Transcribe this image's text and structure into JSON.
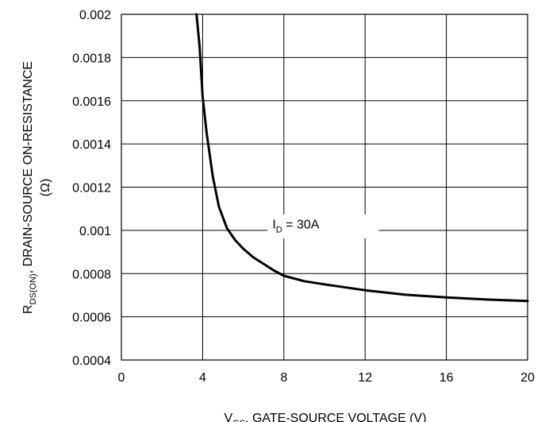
{
  "chart_data": {
    "type": "line",
    "xlabel": {
      "main": "V",
      "sub": "GS",
      "rest": ", GATE-SOURCE VOLTAGE (V)"
    },
    "ylabel": {
      "main": "R",
      "sub": "DS(ON)",
      "rest": ", DRAIN-SOURCE ON-RESISTANCE",
      "unit": "(Ω)"
    },
    "xlim": [
      0,
      20
    ],
    "ylim": [
      0.0004,
      0.002
    ],
    "x_ticks": [
      "0",
      "4",
      "8",
      "12",
      "16",
      "20"
    ],
    "y_ticks": [
      "0.0004",
      "0.0006",
      "0.0008",
      "0.001",
      "0.0012",
      "0.0014",
      "0.0016",
      "0.0018",
      "0.002"
    ],
    "grid": true,
    "annotation": {
      "main": "I",
      "sub": "D",
      "rest": " = 30A",
      "x": 7.2,
      "y": 0.00103
    },
    "series": [
      {
        "values": [
          [
            3.7,
            0.002
          ],
          [
            3.85,
            0.00185
          ],
          [
            4.0,
            0.00162
          ],
          [
            4.2,
            0.00145
          ],
          [
            4.5,
            0.00125
          ],
          [
            4.8,
            0.00111
          ],
          [
            5.2,
            0.00101
          ],
          [
            5.6,
            0.000955
          ],
          [
            6.0,
            0.000915
          ],
          [
            6.5,
            0.000875
          ],
          [
            7.0,
            0.000845
          ],
          [
            7.5,
            0.000815
          ],
          [
            8.0,
            0.00079
          ],
          [
            9.0,
            0.000765
          ],
          [
            10.0,
            0.00075
          ],
          [
            12.0,
            0.000723
          ],
          [
            14.0,
            0.000702
          ],
          [
            16.0,
            0.00069
          ],
          [
            18.0,
            0.00068
          ],
          [
            20.0,
            0.000673
          ]
        ]
      }
    ]
  }
}
